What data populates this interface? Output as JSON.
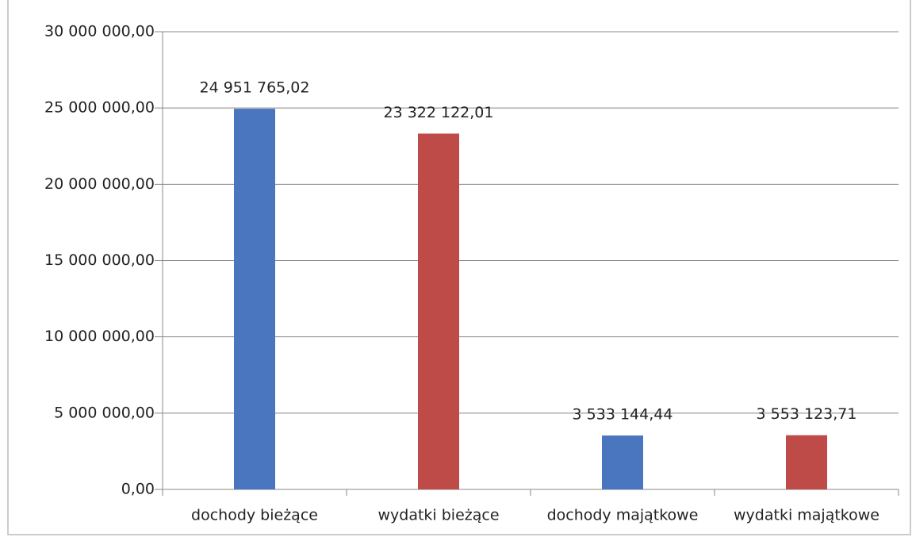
{
  "chart_data": {
    "type": "bar",
    "categories": [
      "dochody bieżące",
      "wydatki bieżące",
      "dochody majątkowe",
      "wydatki majątkowe"
    ],
    "values": [
      24951765.02,
      23322122.01,
      3533144.44,
      3553123.71
    ],
    "value_labels": [
      "24 951 765,02",
      "23 322 122,01",
      "3 533 144,44",
      "3 553 123,71"
    ],
    "colors": [
      "#4a76c0",
      "#bf4b48",
      "#4a76c0",
      "#bf4b48"
    ],
    "ylim": [
      0,
      30000000
    ],
    "yticks": [
      {
        "value": 0,
        "label": "0,00"
      },
      {
        "value": 5000000,
        "label": "5 000 000,00"
      },
      {
        "value": 10000000,
        "label": "10 000 000,00"
      },
      {
        "value": 15000000,
        "label": "15 000 000,00"
      },
      {
        "value": 20000000,
        "label": "20 000 000,00"
      },
      {
        "value": 25000000,
        "label": "25 000 000,00"
      },
      {
        "value": 30000000,
        "label": "30 000 000,00"
      }
    ],
    "grid": true
  }
}
